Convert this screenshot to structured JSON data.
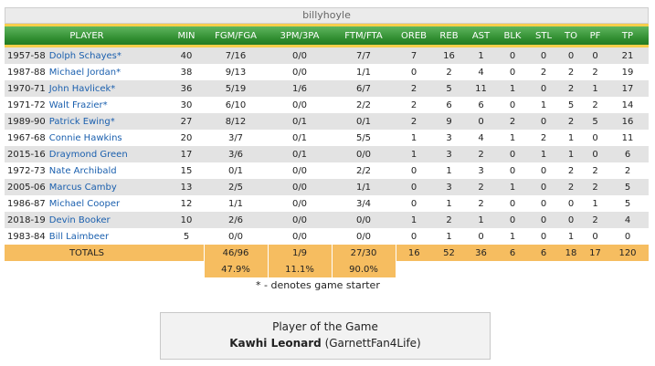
{
  "header": {
    "title": "billyhoyle"
  },
  "columns": [
    "PLAYER",
    "MIN",
    "FGM/FGA",
    "3PM/3PA",
    "FTM/FTA",
    "OREB",
    "REB",
    "AST",
    "BLK",
    "STL",
    "TO",
    "PF",
    "TP"
  ],
  "players": [
    {
      "year": "1957-58",
      "name": "Dolph Schayes*",
      "min": "40",
      "fg": "7/16",
      "tp3": "0/0",
      "ft": "7/7",
      "oreb": "7",
      "reb": "16",
      "ast": "1",
      "blk": "0",
      "stl": "0",
      "to": "0",
      "pf": "0",
      "pts": "21"
    },
    {
      "year": "1987-88",
      "name": "Michael Jordan*",
      "min": "38",
      "fg": "9/13",
      "tp3": "0/0",
      "ft": "1/1",
      "oreb": "0",
      "reb": "2",
      "ast": "4",
      "blk": "0",
      "stl": "2",
      "to": "2",
      "pf": "2",
      "pts": "19"
    },
    {
      "year": "1970-71",
      "name": "John Havlicek*",
      "min": "36",
      "fg": "5/19",
      "tp3": "1/6",
      "ft": "6/7",
      "oreb": "2",
      "reb": "5",
      "ast": "11",
      "blk": "1",
      "stl": "0",
      "to": "2",
      "pf": "1",
      "pts": "17"
    },
    {
      "year": "1971-72",
      "name": "Walt Frazier*",
      "min": "30",
      "fg": "6/10",
      "tp3": "0/0",
      "ft": "2/2",
      "oreb": "2",
      "reb": "6",
      "ast": "6",
      "blk": "0",
      "stl": "1",
      "to": "5",
      "pf": "2",
      "pts": "14"
    },
    {
      "year": "1989-90",
      "name": "Patrick Ewing*",
      "min": "27",
      "fg": "8/12",
      "tp3": "0/1",
      "ft": "0/1",
      "oreb": "2",
      "reb": "9",
      "ast": "0",
      "blk": "2",
      "stl": "0",
      "to": "2",
      "pf": "5",
      "pts": "16"
    },
    {
      "year": "1967-68",
      "name": "Connie Hawkins",
      "min": "20",
      "fg": "3/7",
      "tp3": "0/1",
      "ft": "5/5",
      "oreb": "1",
      "reb": "3",
      "ast": "4",
      "blk": "1",
      "stl": "2",
      "to": "1",
      "pf": "0",
      "pts": "11"
    },
    {
      "year": "2015-16",
      "name": "Draymond Green",
      "min": "17",
      "fg": "3/6",
      "tp3": "0/1",
      "ft": "0/0",
      "oreb": "1",
      "reb": "3",
      "ast": "2",
      "blk": "0",
      "stl": "1",
      "to": "1",
      "pf": "0",
      "pts": "6"
    },
    {
      "year": "1972-73",
      "name": "Nate Archibald",
      "min": "15",
      "fg": "0/1",
      "tp3": "0/0",
      "ft": "2/2",
      "oreb": "0",
      "reb": "1",
      "ast": "3",
      "blk": "0",
      "stl": "0",
      "to": "2",
      "pf": "2",
      "pts": "2"
    },
    {
      "year": "2005-06",
      "name": "Marcus Camby",
      "min": "13",
      "fg": "2/5",
      "tp3": "0/0",
      "ft": "1/1",
      "oreb": "0",
      "reb": "3",
      "ast": "2",
      "blk": "1",
      "stl": "0",
      "to": "2",
      "pf": "2",
      "pts": "5"
    },
    {
      "year": "1986-87",
      "name": "Michael Cooper",
      "min": "12",
      "fg": "1/1",
      "tp3": "0/0",
      "ft": "3/4",
      "oreb": "0",
      "reb": "1",
      "ast": "2",
      "blk": "0",
      "stl": "0",
      "to": "0",
      "pf": "1",
      "pts": "5"
    },
    {
      "year": "2018-19",
      "name": "Devin Booker",
      "min": "10",
      "fg": "2/6",
      "tp3": "0/0",
      "ft": "0/0",
      "oreb": "1",
      "reb": "2",
      "ast": "1",
      "blk": "0",
      "stl": "0",
      "to": "0",
      "pf": "2",
      "pts": "4"
    },
    {
      "year": "1983-84",
      "name": "Bill Laimbeer",
      "min": "5",
      "fg": "0/0",
      "tp3": "0/0",
      "ft": "0/0",
      "oreb": "0",
      "reb": "1",
      "ast": "0",
      "blk": "1",
      "stl": "0",
      "to": "1",
      "pf": "0",
      "pts": "0"
    }
  ],
  "totals": {
    "label": "TOTALS",
    "fg": "46/96",
    "tp3": "1/9",
    "ft": "27/30",
    "oreb": "16",
    "reb": "52",
    "ast": "36",
    "blk": "6",
    "stl": "6",
    "to": "18",
    "pf": "17",
    "pts": "120"
  },
  "percentages": {
    "fg": "47.9%",
    "tp3": "11.1%",
    "ft": "90.0%"
  },
  "starter_note": "* - denotes game starter",
  "potg": {
    "title": "Player of the Game",
    "player": "Kawhi Leonard",
    "user": "(GarnettFan4Life)"
  },
  "colors": {
    "header_green": "#2e8b2e",
    "accent_yellow": "#f6ce4b",
    "totals_orange": "#f6bd60",
    "link_blue": "#1a5fae"
  }
}
